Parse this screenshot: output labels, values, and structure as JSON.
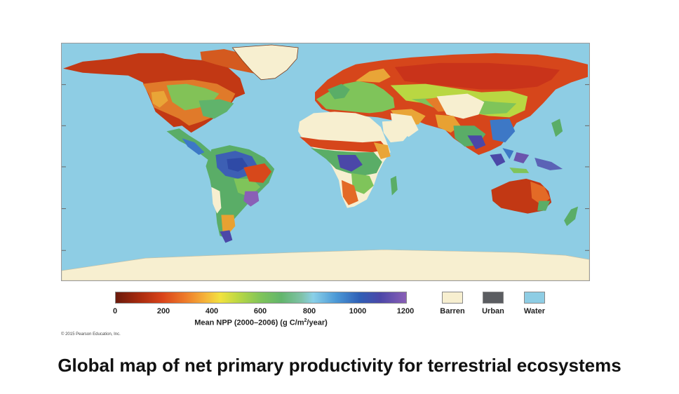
{
  "map": {
    "name": "Global NPP world map",
    "colors": {
      "water": "#8ecde4",
      "barren": "#f7efd0",
      "urban": "#5b5d61",
      "low": "#b52d12",
      "mid_low": "#e36a26",
      "mid": "#f4c13c",
      "mid_high": "#7fc45a",
      "high": "#3d78c6",
      "very_high": "#6b54ad"
    }
  },
  "colorbar": {
    "ticks": [
      "0",
      "200",
      "400",
      "600",
      "800",
      "1000",
      "1200"
    ],
    "label_prefix": "Mean NPP (2000–2006) (g C/m",
    "label_exponent": "2",
    "label_suffix": "/year)"
  },
  "legend": {
    "items": [
      {
        "label": "Barren",
        "color": "#f7efd0"
      },
      {
        "label": "Urban",
        "color": "#5b5d61"
      },
      {
        "label": "Water",
        "color": "#8ecde4"
      }
    ]
  },
  "copyright": "© 2015 Pearson Education, Inc.",
  "caption": "Global map of net primary productivity for terrestrial ecosystems"
}
